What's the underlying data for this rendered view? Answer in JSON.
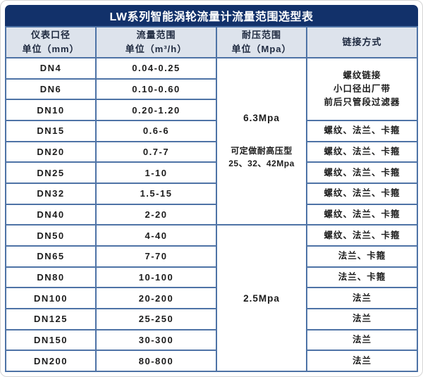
{
  "colors": {
    "title_bar_bg": "#12316a",
    "border_blue": "#4e73a6",
    "header_bg": "#dde3ec"
  },
  "table": {
    "title": "LW系列智能涡轮流量计流量范围选型表",
    "headers": [
      "仪表口径\n单位（mm）",
      "流量范围\n单位（m³/h）",
      "耐压范围\n单位（Mpa）",
      "链接方式"
    ],
    "rows": [
      {
        "dn": "DN4",
        "flow": "0.04-0.25"
      },
      {
        "dn": "DN6",
        "flow": "0.10-0.60"
      },
      {
        "dn": "DN10",
        "flow": "0.20-1.20"
      },
      {
        "dn": "DN15",
        "flow": "0.6-6"
      },
      {
        "dn": "DN20",
        "flow": "0.7-7"
      },
      {
        "dn": "DN25",
        "flow": "1-10"
      },
      {
        "dn": "DN32",
        "flow": "1.5-15"
      },
      {
        "dn": "DN40",
        "flow": "2-20"
      },
      {
        "dn": "DN50",
        "flow": "4-40"
      },
      {
        "dn": "DN65",
        "flow": "7-70"
      },
      {
        "dn": "DN80",
        "flow": "10-100"
      },
      {
        "dn": "DN100",
        "flow": "20-200"
      },
      {
        "dn": "DN125",
        "flow": "25-250"
      },
      {
        "dn": "DN150",
        "flow": "30-300"
      },
      {
        "dn": "DN200",
        "flow": "80-800"
      }
    ],
    "pressure_cells": [
      {
        "label": "6.3Mpa",
        "note": "可定做耐高压型\n25、32、42Mpa",
        "row_span": 8
      },
      {
        "label": "2.5Mpa",
        "row_span": 7
      }
    ],
    "connection_cells": [
      {
        "text": "螺纹链接\n小口径出厂带\n前后只管段过滤器",
        "row_span": 3
      },
      {
        "text": "螺纹、法兰、卡箍",
        "row_span": 1
      },
      {
        "text": "螺纹、法兰、卡箍",
        "row_span": 1
      },
      {
        "text": "螺纹、法兰、卡箍",
        "row_span": 1
      },
      {
        "text": "螺纹、法兰、卡箍",
        "row_span": 1
      },
      {
        "text": "螺纹、法兰、卡箍",
        "row_span": 1
      },
      {
        "text": "螺纹、法兰、卡箍",
        "row_span": 1
      },
      {
        "text": "法兰、卡箍",
        "row_span": 1
      },
      {
        "text": "法兰、卡箍",
        "row_span": 1
      },
      {
        "text": "法兰",
        "row_span": 1
      },
      {
        "text": "法兰",
        "row_span": 1
      },
      {
        "text": "法兰",
        "row_span": 1
      },
      {
        "text": "法兰",
        "row_span": 1
      }
    ]
  }
}
